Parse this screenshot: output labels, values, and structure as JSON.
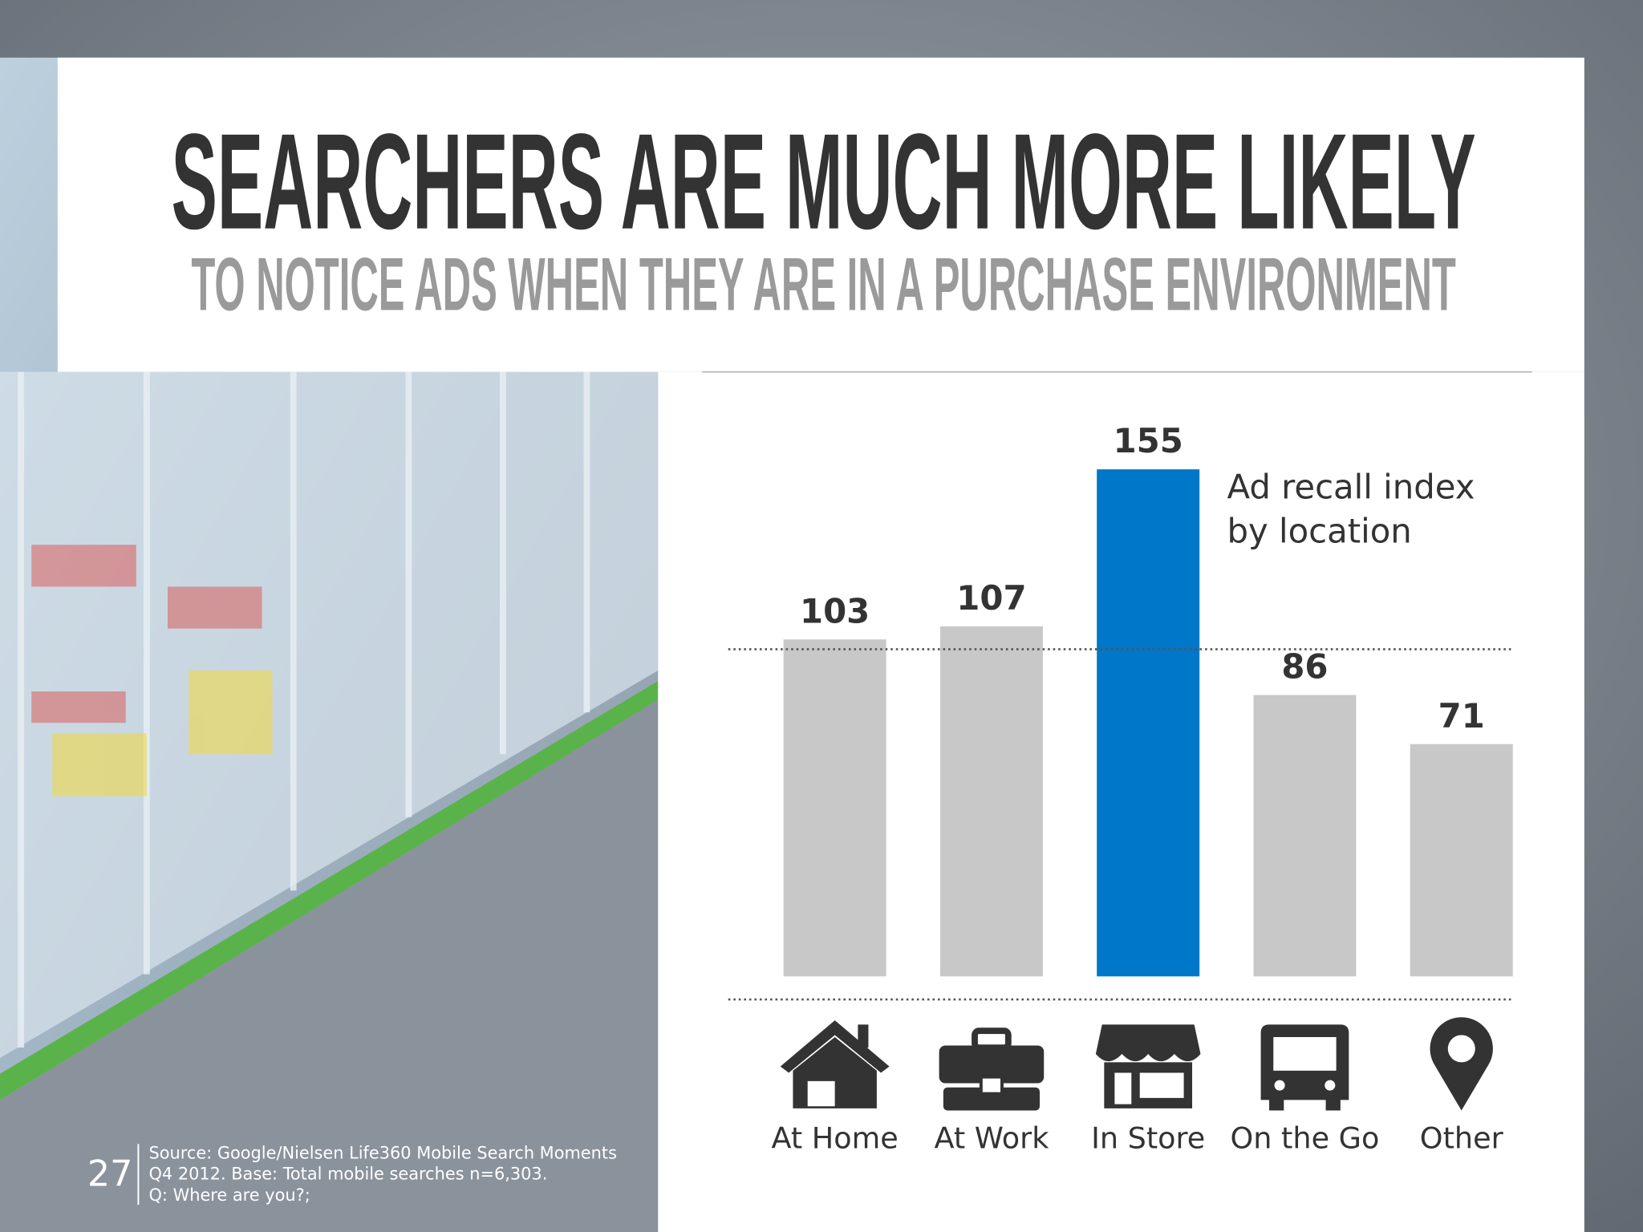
{
  "chart_data": {
    "type": "bar",
    "title": "SEARCHERS ARE MUCH MORE LIKELY",
    "subtitle": "TO NOTICE ADS WHEN THEY ARE IN A PURCHASE ENVIRONMENT",
    "annotation": [
      "Ad recall index",
      "by location"
    ],
    "categories": [
      "At Home",
      "At Work",
      "In Store",
      "On the Go",
      "Other"
    ],
    "values": [
      103,
      107,
      155,
      86,
      71
    ],
    "colors": [
      "#c8c8c8",
      "#c8c8c8",
      "#0077c8",
      "#c8c8c8",
      "#c8c8c8"
    ],
    "reference_line": 100
  },
  "footer": {
    "page_number": "27",
    "source": [
      "Source: Google/Nielsen Life360 Mobile Search Moments",
      "Q4 2012. Base: Total mobile searches n=6,303.",
      "Q: Where are you?;"
    ]
  }
}
